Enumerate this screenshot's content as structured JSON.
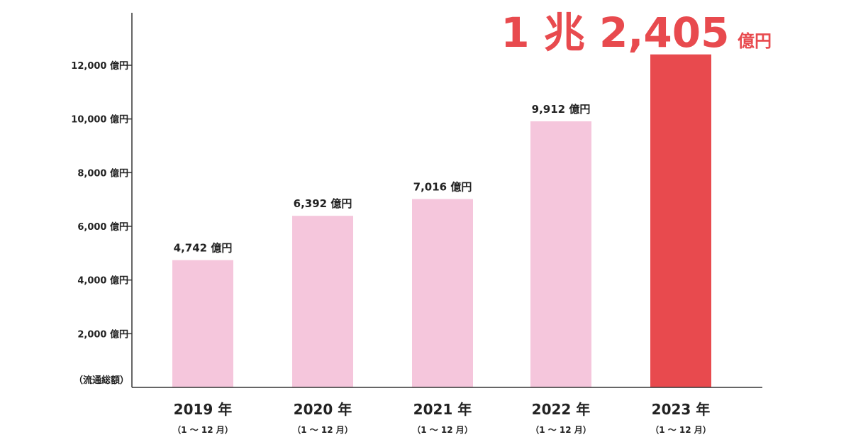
{
  "chart_data": {
    "type": "bar",
    "categories": [
      "2019 年",
      "2020 年",
      "2021 年",
      "2022 年",
      "2023 年"
    ],
    "period_labels": [
      "（1 ～ 12 月）",
      "（1 ～ 12 月）",
      "（1 ～ 12 月）",
      "（1 ～ 12 月）",
      "（1 ～ 12 月）"
    ],
    "values": [
      4742,
      6392,
      7016,
      9912,
      12405
    ],
    "value_labels": [
      "4,742 億円",
      "6,392 億円",
      "7,016 億円",
      "9,912 億円",
      ""
    ],
    "highlight_label": {
      "number": "1 兆 2,405",
      "unit": "億円"
    },
    "y_ticks": [
      {
        "value": 2000,
        "label": "2,000 億円"
      },
      {
        "value": 4000,
        "label": "4,000 億円"
      },
      {
        "value": 6000,
        "label": "6,000 億円"
      },
      {
        "value": 8000,
        "label": "8,000 億円"
      },
      {
        "value": 10000,
        "label": "10,000 億円"
      },
      {
        "value": 12000,
        "label": "12,000 億円"
      }
    ],
    "ylabel": "（流通総額）",
    "ylim": [
      0,
      14000
    ],
    "grid": false,
    "colors": {
      "bar": "#f5c6dc",
      "bar_highlight": "#e84a4e",
      "highlight_text": "#e84a4e",
      "text": "#222222",
      "axis": "#333333"
    }
  }
}
